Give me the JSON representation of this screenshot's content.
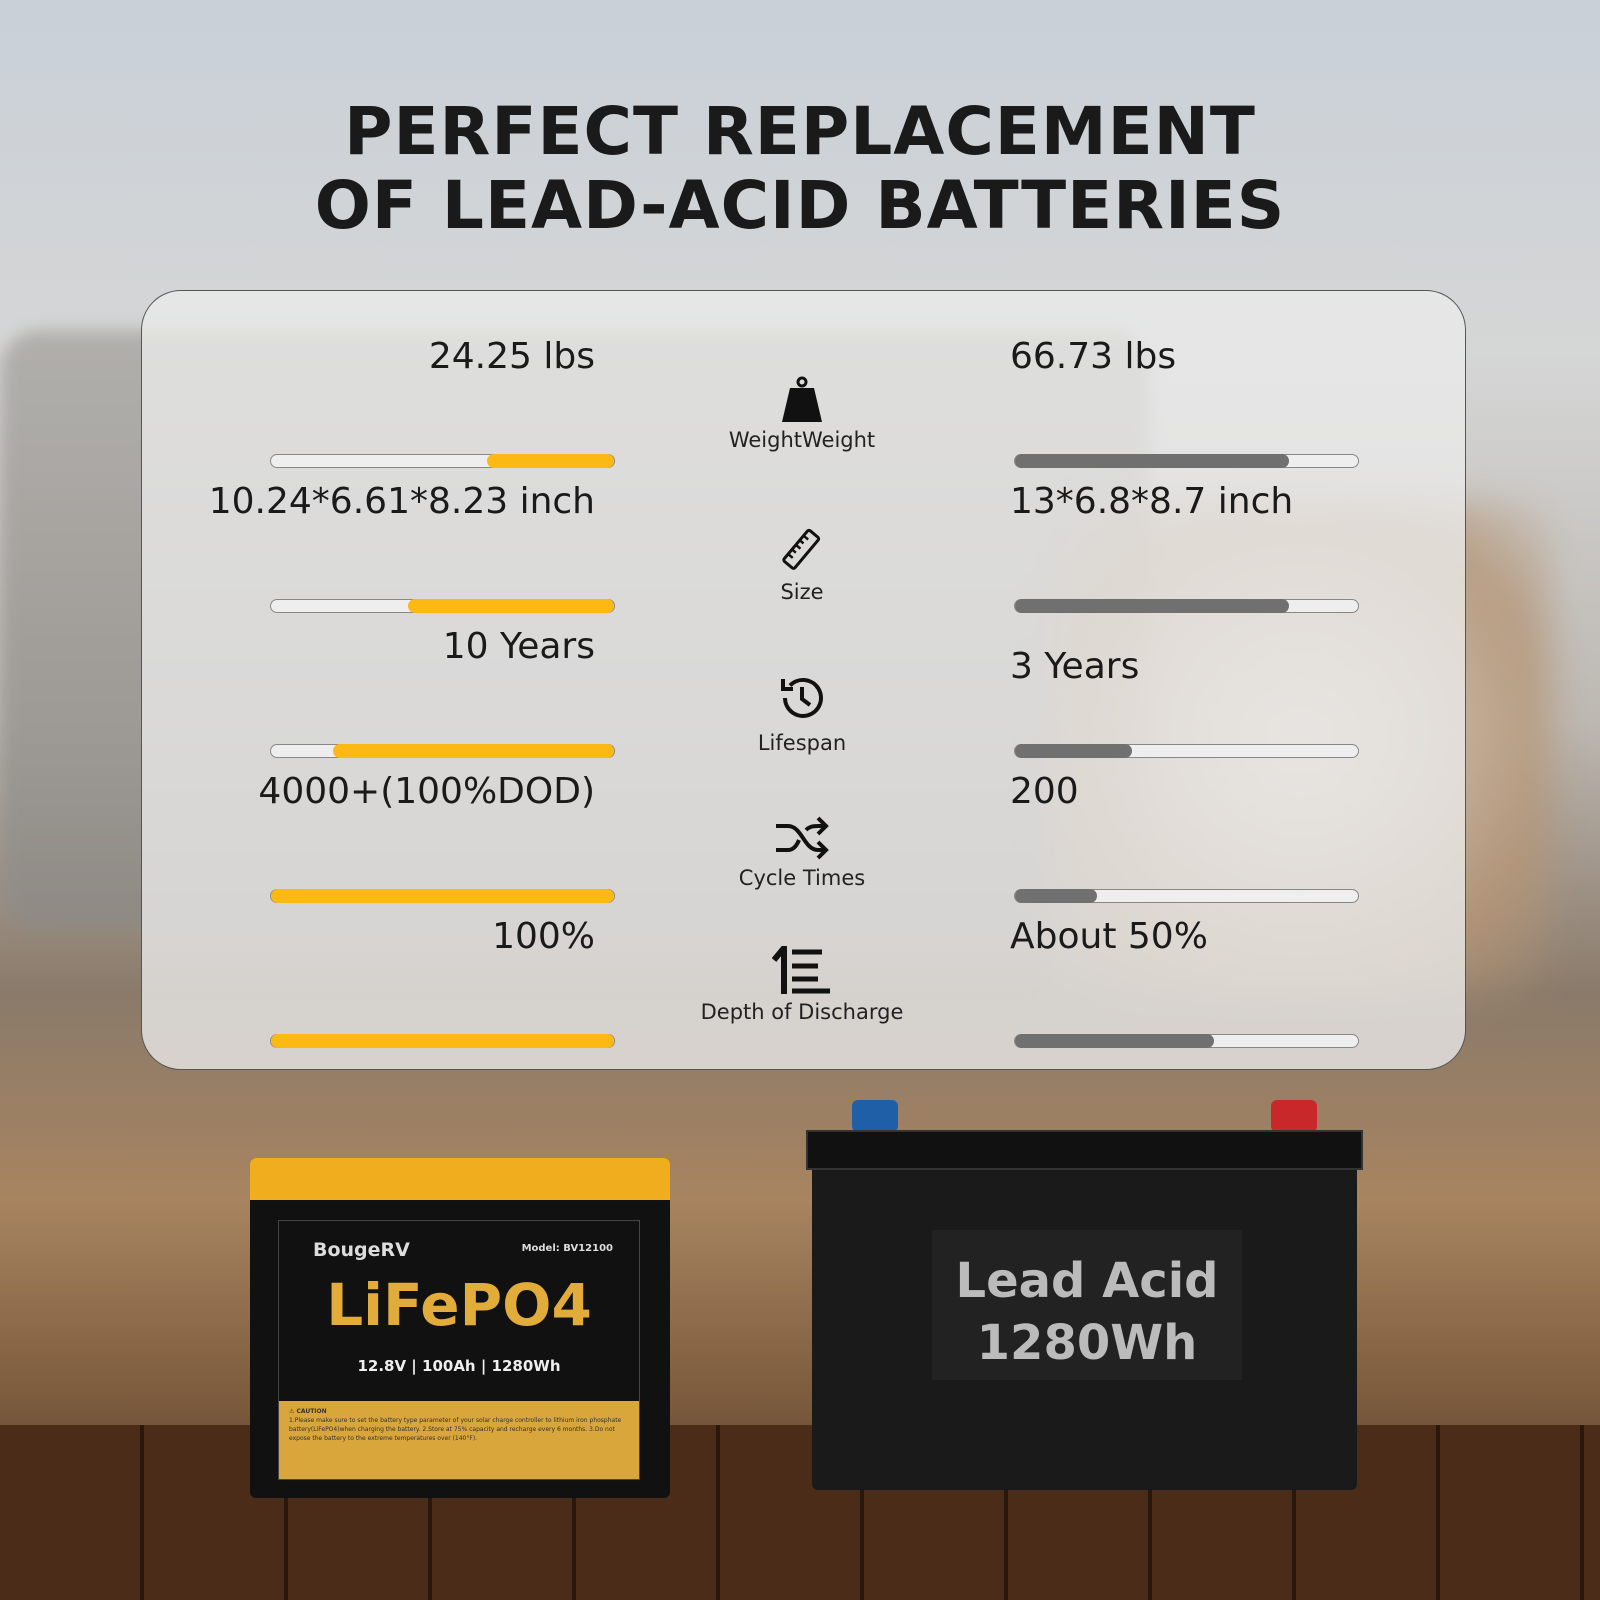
{
  "title": {
    "line1": "PERFECT REPLACEMENT",
    "line2": "OF LEAD-ACID BATTERIES"
  },
  "colors": {
    "lifepo4_bar": "#fdb913",
    "lead_acid_bar": "#707070"
  },
  "comparison": [
    {
      "label": "WeightWeight",
      "icon": "weight-icon",
      "lifepo4": "24.25 lbs",
      "lifepo4_fill": 0.37,
      "lead_acid": "66.73 lbs",
      "lead_acid_fill": 0.8
    },
    {
      "label": "Size",
      "icon": "ruler-icon",
      "lifepo4": "10.24*6.61*8.23 inch",
      "lifepo4_fill": 0.6,
      "lead_acid": "13*6.8*8.7 inch",
      "lead_acid_fill": 0.8
    },
    {
      "label": "Lifespan",
      "icon": "clock-history-icon",
      "lifepo4": "10 Years",
      "lifepo4_fill": 0.82,
      "lead_acid": "3 Years",
      "lead_acid_fill": 0.34
    },
    {
      "label": "Cycle Times",
      "icon": "shuffle-icon",
      "lifepo4": "4000+(100%DOD)",
      "lifepo4_fill": 1.0,
      "lead_acid": "200",
      "lead_acid_fill": 0.24
    },
    {
      "label": "Depth of Discharge",
      "icon": "discharge-icon",
      "lifepo4": "100%",
      "lifepo4_fill": 1.0,
      "lead_acid": "About 50%",
      "lead_acid_fill": 0.58
    }
  ],
  "lifepo4_battery": {
    "brand": "BougeRV",
    "model": "Model: BV12100",
    "chemistry": "LiFePO4",
    "specs": "12.8V | 100Ah | 1280Wh",
    "caution_title": "⚠ CAUTION",
    "caution_text": "1.Please make sure to set the battery type parameter of your solar charge controller to lithium iron phosphate battery(LiFePO4)when charging the battery. 2.Store at 75% capacity and recharge every 6 months. 3.Do not expose the battery to the extreme temperatures over (140°F)."
  },
  "lead_acid_battery": {
    "line1": "Lead Acid",
    "line2": "1280Wh"
  }
}
